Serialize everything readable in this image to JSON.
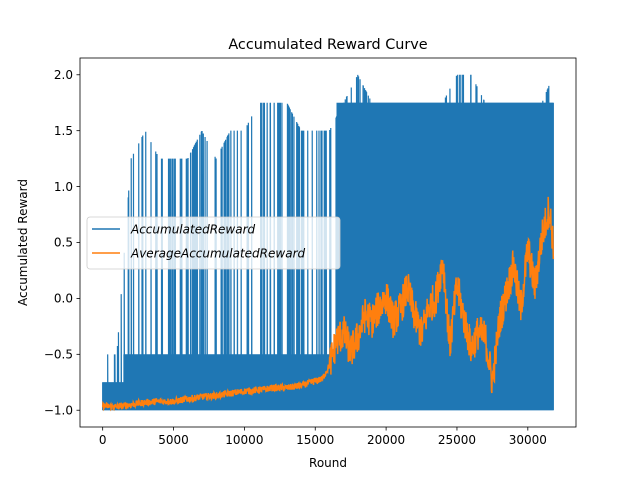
{
  "chart_data": {
    "type": "line",
    "title": "Accumulated Reward Curve",
    "xlabel": "Round",
    "ylabel": "Accumulated Reward",
    "xlim": [
      -1600,
      33400
    ],
    "ylim": [
      -1.15,
      2.15
    ],
    "xticks": [
      0,
      5000,
      10000,
      15000,
      20000,
      25000,
      30000
    ],
    "xtick_labels": [
      "0",
      "5000",
      "10000",
      "15000",
      "20000",
      "25000",
      "30000"
    ],
    "yticks": [
      -1.0,
      -0.5,
      0.0,
      0.5,
      1.0,
      1.5,
      2.0
    ],
    "ytick_labels": [
      "−1.0",
      "−0.5",
      "0.0",
      "0.5",
      "1.0",
      "1.5",
      "2.0"
    ],
    "grid": false,
    "legend_position": "center-left",
    "n_rounds": 31800,
    "series": [
      {
        "name": "AccumulatedReward",
        "color": "#1f77b4",
        "description_points": {
          "round": [
            0,
            1000,
            2000,
            3000,
            4000,
            5000,
            6000,
            7000,
            8000,
            9000,
            10000,
            11000,
            12000,
            13000,
            14000,
            15000,
            16000,
            17000,
            18000,
            19000,
            20000,
            21000,
            22000,
            23000,
            24000,
            25000,
            26000,
            27000,
            28000,
            29000,
            30000,
            31000,
            31800
          ],
          "min": [
            -1.0,
            -1.0,
            -1.0,
            -1.0,
            -1.0,
            -1.0,
            -1.0,
            -1.0,
            -1.0,
            -1.0,
            -1.0,
            -1.0,
            -1.0,
            -1.0,
            -1.0,
            -1.0,
            -1.0,
            -1.0,
            -1.0,
            -1.0,
            -1.0,
            -1.0,
            -1.0,
            -1.0,
            -1.0,
            -1.0,
            -1.0,
            -1.0,
            -1.0,
            -1.0,
            -1.0,
            -1.0,
            -1.0
          ],
          "max": [
            -0.5,
            -0.5,
            1.25,
            1.5,
            1.25,
            1.25,
            1.25,
            1.5,
            1.25,
            1.5,
            1.5,
            1.75,
            1.75,
            1.75,
            1.5,
            1.5,
            1.5,
            1.75,
            2.0,
            1.75,
            1.75,
            1.75,
            1.75,
            1.75,
            1.75,
            2.0,
            2.0,
            1.75,
            1.75,
            1.75,
            1.75,
            1.75,
            2.0
          ]
        }
      },
      {
        "name": "AverageAccumulatedReward",
        "color": "#ff7f0e",
        "values": {
          "round": [
            0,
            1000,
            2000,
            3000,
            4000,
            5000,
            6000,
            7000,
            8000,
            9000,
            10000,
            11000,
            12000,
            13000,
            14000,
            15000,
            15500,
            16000,
            16500,
            17000,
            17500,
            18000,
            18500,
            19000,
            19500,
            20000,
            20500,
            21000,
            21500,
            22000,
            22500,
            23000,
            23500,
            24000,
            24500,
            25000,
            25500,
            26000,
            26500,
            27000,
            27500,
            28000,
            28500,
            29000,
            29500,
            30000,
            30500,
            31000,
            31500,
            31800
          ],
          "value": [
            -0.96,
            -0.97,
            -0.95,
            -0.93,
            -0.92,
            -0.92,
            -0.9,
            -0.88,
            -0.87,
            -0.85,
            -0.83,
            -0.82,
            -0.8,
            -0.8,
            -0.78,
            -0.74,
            -0.72,
            -0.6,
            -0.38,
            -0.3,
            -0.48,
            -0.35,
            -0.15,
            -0.2,
            -0.08,
            0.02,
            -0.2,
            -0.1,
            0.1,
            -0.15,
            -0.32,
            -0.08,
            0.0,
            0.35,
            -0.42,
            0.12,
            -0.18,
            -0.45,
            -0.3,
            -0.35,
            -0.75,
            -0.2,
            0.05,
            0.3,
            -0.1,
            0.45,
            0.1,
            0.55,
            0.8,
            0.5
          ]
        }
      }
    ]
  }
}
